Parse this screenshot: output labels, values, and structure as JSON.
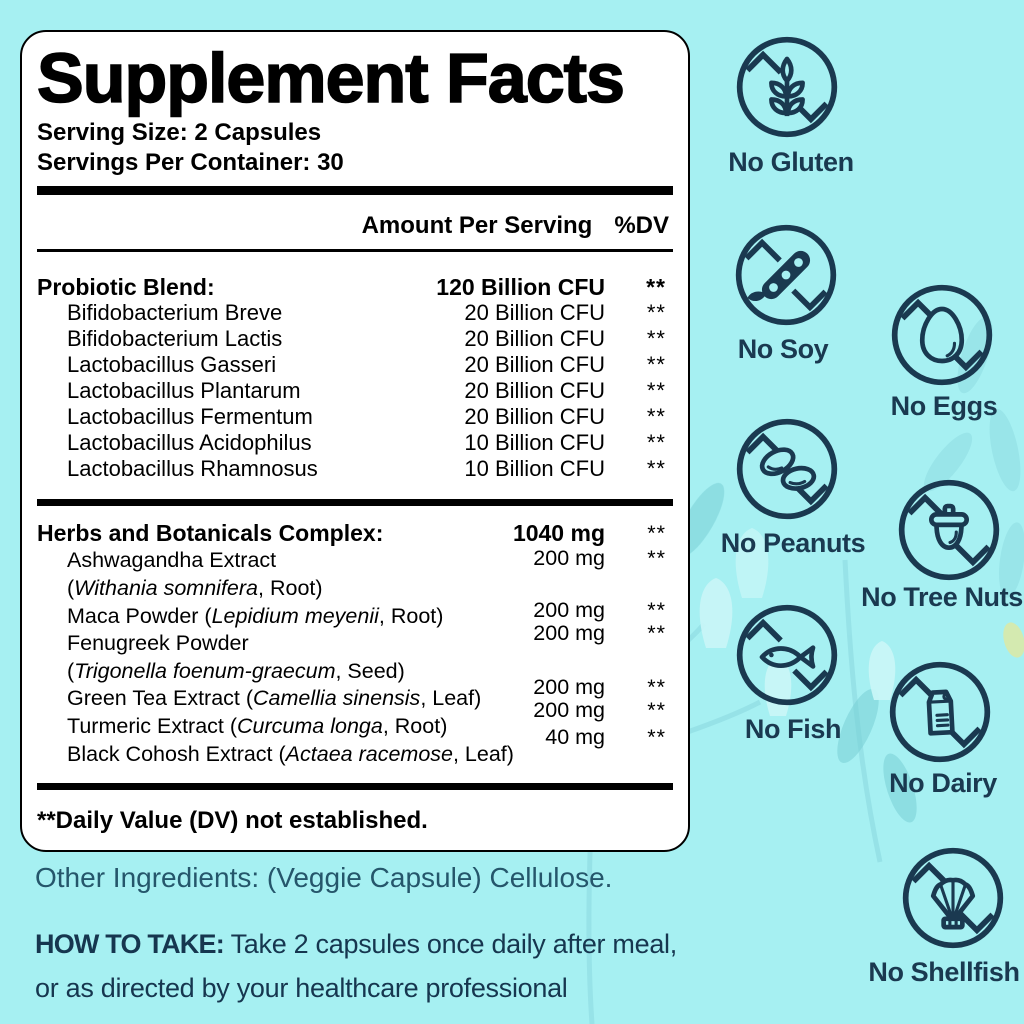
{
  "colors": {
    "background": "#a6f0f2",
    "panel_background": "#ffffff",
    "panel_border": "#000000",
    "label_text": "#000000",
    "icon_navy": "#1a3950",
    "other_ingredients_teal": "#25566b",
    "how_to_take_navy": "#16364f"
  },
  "panel": {
    "title": "Supplement Facts",
    "serving_size": "Serving Size: 2 Capsules",
    "servings_per_container": "Servings Per Container: 30",
    "amount_per_serving_header": "Amount Per Serving",
    "dv_header": "%DV",
    "probiotic_blend": {
      "header": {
        "name": "Probiotic Blend:",
        "amount": "120 Billion CFU",
        "dv": "**"
      },
      "items": [
        {
          "name": "Bifidobacterium Breve",
          "amount": "20 Billion CFU",
          "dv": "**"
        },
        {
          "name": "Bifidobacterium Lactis",
          "amount": "20 Billion CFU",
          "dv": "**"
        },
        {
          "name": "Lactobacillus Gasseri",
          "amount": "20 Billion CFU",
          "dv": "**"
        },
        {
          "name": "Lactobacillus Plantarum",
          "amount": "20 Billion CFU",
          "dv": "**"
        },
        {
          "name": "Lactobacillus Fermentum",
          "amount": "20 Billion CFU",
          "dv": "**"
        },
        {
          "name": "Lactobacillus Acidophilus",
          "amount": "10 Billion CFU",
          "dv": "**"
        },
        {
          "name": "Lactobacillus Rhamnosus",
          "amount": "10 Billion CFU",
          "dv": "**"
        }
      ]
    },
    "herbs_complex": {
      "header": {
        "name": "Herbs and Botanicals Complex:",
        "amount": "1040 mg",
        "dv": "**"
      },
      "name_lines": [
        {
          "segments": [
            {
              "t": "Ashwagandha Extract"
            }
          ]
        },
        {
          "segments": [
            {
              "t": "("
            },
            {
              "t": "Withania somnifera",
              "i": true
            },
            {
              "t": ", Root)"
            }
          ]
        },
        {
          "segments": [
            {
              "t": "Maca Powder ("
            },
            {
              "t": "Lepidium meyenii",
              "i": true
            },
            {
              "t": ", Root)"
            }
          ]
        },
        {
          "segments": [
            {
              "t": "Fenugreek Powder"
            }
          ]
        },
        {
          "segments": [
            {
              "t": "("
            },
            {
              "t": "Trigonella foenum-graecum",
              "i": true
            },
            {
              "t": ", Seed)"
            }
          ]
        },
        {
          "segments": [
            {
              "t": "Green Tea Extract ("
            },
            {
              "t": "Camellia sinensis",
              "i": true
            },
            {
              "t": ", Leaf)"
            }
          ]
        },
        {
          "segments": [
            {
              "t": "Turmeric Extract ("
            },
            {
              "t": "Curcuma longa",
              "i": true
            },
            {
              "t": ", Root)"
            }
          ]
        },
        {
          "segments": [
            {
              "t": "Black Cohosh Extract ("
            },
            {
              "t": "Actaea racemose",
              "i": true
            },
            {
              "t": ", Leaf)"
            }
          ]
        }
      ],
      "amounts": [
        {
          "amount": "200 mg",
          "dv": "**"
        },
        {
          "amount": "200 mg",
          "dv": "**"
        },
        {
          "amount": "200 mg",
          "dv": "**"
        },
        {
          "amount": "200 mg",
          "dv": "**"
        },
        {
          "amount": "200 mg",
          "dv": "**"
        },
        {
          "amount": "40 mg",
          "dv": "**"
        }
      ]
    },
    "footnote": "**Daily Value (DV) not established."
  },
  "other_ingredients": {
    "label": "Other Ingredients:",
    "text": " (Veggie Capsule) Cellulose."
  },
  "how_to_take": {
    "label": "HOW TO TAKE:",
    "line1": " Take 2 capsules once daily after meal,",
    "line2": "or as directed by your healthcare professional"
  },
  "badges": [
    {
      "label": "No Gluten",
      "icon": "wheat-icon"
    },
    {
      "label": "No Soy",
      "icon": "soybean-icon"
    },
    {
      "label": "No Eggs",
      "icon": "egg-icon"
    },
    {
      "label": "No Peanuts",
      "icon": "peanut-icon"
    },
    {
      "label": "No Tree Nuts",
      "icon": "acorn-icon"
    },
    {
      "label": "No Fish",
      "icon": "fish-icon"
    },
    {
      "label": "No Dairy",
      "icon": "milk-carton-icon"
    },
    {
      "label": "No Shellfish",
      "icon": "scallop-shell-icon"
    }
  ]
}
